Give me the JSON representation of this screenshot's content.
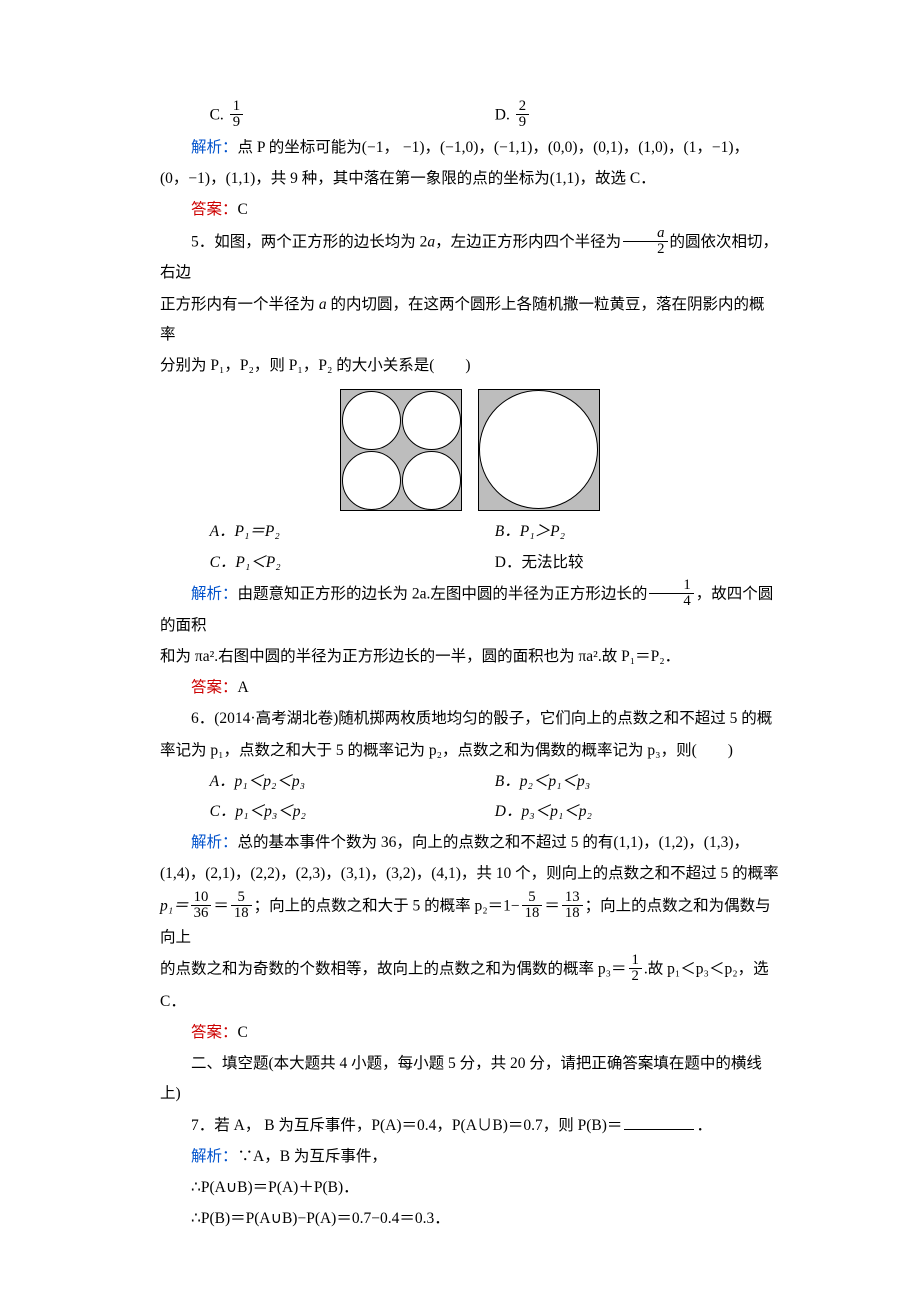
{
  "q4": {
    "optC": "C. ",
    "fracC_num": "1",
    "fracC_den": "9",
    "optD": "D. ",
    "fracD_num": "2",
    "fracD_den": "9",
    "explain_label": "解析：",
    "explain_1": "点 P 的坐标可能为(−1， −1)，(−1,0)，(−1,1)，(0,0)，(0,1)，(1,0)，(1，−1)，",
    "explain_2": "(0，−1)，(1,1)，共 9 种，其中落在第一象限的点的坐标为(1,1)，故选 C．",
    "answer_label": "答案：",
    "answer": "C"
  },
  "q5": {
    "stem_1a": "5．如图，两个正方形的边长均为 2",
    "stem_1b": "，左边正方形内四个半径为",
    "stem_1c": "的圆依次相切，右边",
    "frac_a_num": "a",
    "frac_a_den": "2",
    "stem_2a": "正方形内有一个半径为 ",
    "stem_2b": " 的内切圆，在这两个圆形上各随机撒一粒黄豆，落在阴影内的概率",
    "stem_3": "分别为 P₁，P₂，则 P₁，P₂ 的大小关系是(　　)",
    "A": "A．P₁＝P₂",
    "B": "B．P₁＞P₂",
    "C": "C．P₁＜P₂",
    "D": "D．无法比较",
    "explain_label": "解析：",
    "explain_1a": "由题意知正方形的边长为 2a.左图中圆的半径为正方形边长的",
    "explain_1b": "，故四个圆的面积",
    "frac14_num": "1",
    "frac14_den": "4",
    "explain_2": "和为 πa².右图中圆的半径为正方形边长的一半，圆的面积也为 πa².故 P₁＝P₂．",
    "answer_label": "答案：",
    "answer": "A"
  },
  "q6": {
    "stem_1": "6．(2014·高考湖北卷)随机掷两枚质地均匀的骰子，它们向上的点数之和不超过 5 的概",
    "stem_2": "率记为 p₁，点数之和大于 5 的概率记为 p₂，点数之和为偶数的概率记为 p₃，则(　　)",
    "A": "A．p₁＜p₂＜p₃",
    "B": "B．p₂＜p₁＜p₃",
    "C": "C．p₁＜p₃＜p₂",
    "D": "D．p₃＜p₁＜p₂",
    "explain_label": "解析：",
    "explain_1": "总的基本事件个数为 36，向上的点数之和不超过 5 的有(1,1)，(1,2)，(1,3)，",
    "explain_2": "(1,4)，(2,1)，(2,2)，(2,3)，(3,1)，(3,2)，(4,1)，共 10 个，则向上的点数之和不超过 5 的概率",
    "explain_3a": "p₁＝",
    "f1_num": "10",
    "f1_den": "36",
    "f2_num": "5",
    "f2_den": "18",
    "explain_3b": "＝",
    "explain_3c": "；向上的点数之和大于 5 的概率 p₂＝1−",
    "f3_num": "5",
    "f3_den": "18",
    "explain_3d": "＝",
    "f4_num": "13",
    "f4_den": "18",
    "explain_3e": "；向上的点数之和为偶数与向上",
    "explain_4a": "的点数之和为奇数的个数相等，故向上的点数之和为偶数的概率 p₃＝",
    "f5_num": "1",
    "f5_den": "2",
    "explain_4b": ".故 p₁＜p₃＜p₂，选",
    "explain_5": "C．",
    "answer_label": "答案：",
    "answer": "C"
  },
  "section2": "二、填空题(本大题共 4 小题，每小题 5 分，共 20 分，请把正确答案填在题中的横线上)",
  "q7": {
    "stem_1": "7．若 A， B 为互斥事件，P(A)＝0.4，P(A∪B)＝0.7，则 P(B)＝",
    "stem_1b": "．",
    "explain_label": "解析：",
    "explain_1": "∵A，B 为互斥事件，",
    "line2": "∴P(A∪B)＝P(A)＋P(B)．",
    "line3": "∴P(B)＝P(A∪B)−P(A)＝0.7−0.4＝0.3．"
  },
  "colors": {
    "blue": "#0052cc",
    "red": "#cc0000",
    "text": "#000000",
    "shade": "#bdbdbd",
    "bg": "#ffffff"
  }
}
